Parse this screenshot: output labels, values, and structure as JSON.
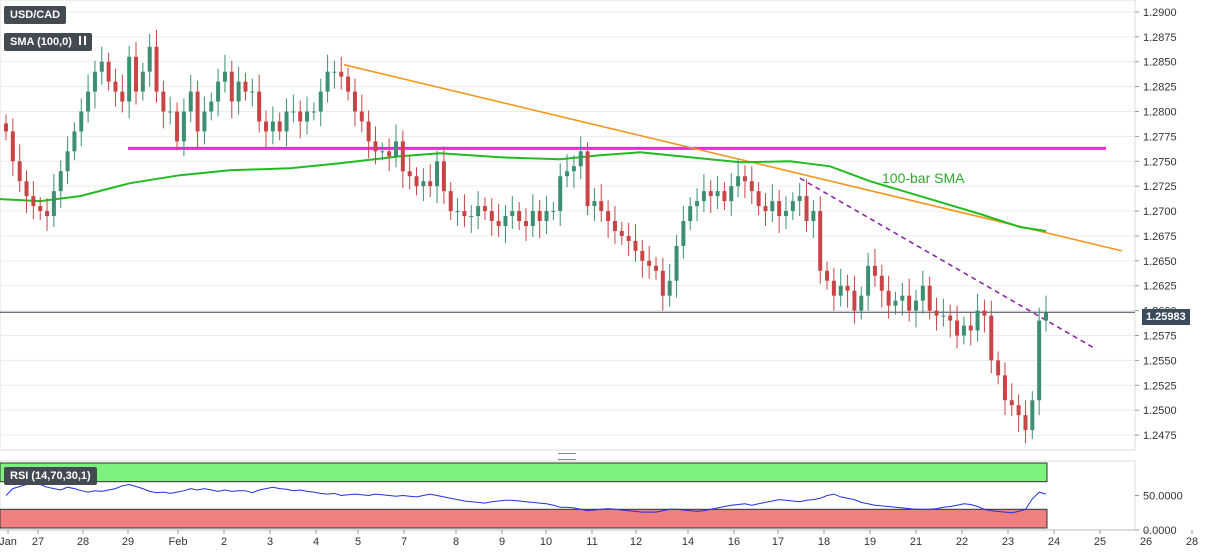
{
  "symbol": "USD/CAD",
  "indicator_label": "SMA (100,0)",
  "rsi_label": "RSI (14,70,30,1)",
  "annotation": "100-bar SMA",
  "current_price": "1.25983",
  "colors": {
    "up": "#3d8f72",
    "down": "#c94545",
    "sma": "#22bb22",
    "trend": "#f5961e",
    "support": "#ff22dd",
    "dashed": "#8a2aa3",
    "rsi_line": "#2233dd",
    "rsi_over": "#7cf27c",
    "rsi_under": "#f07f7f"
  },
  "chart_data": {
    "type": "candlestick",
    "y_ticks": [
      "1.2900",
      "1.2875",
      "1.2850",
      "1.2825",
      "1.2800",
      "1.2775",
      "1.2750",
      "1.2725",
      "1.2700",
      "1.2675",
      "1.2650",
      "1.2625",
      "1.2600",
      "1.2575",
      "1.2550",
      "1.2525",
      "1.2500",
      "1.2475"
    ],
    "x_ticks": [
      "Jan",
      "27",
      "28",
      "29",
      "Feb",
      "2",
      "3",
      "4",
      "5",
      "7",
      "8",
      "9",
      "10",
      "11",
      "12",
      "14",
      "16",
      "17",
      "18",
      "19",
      "21",
      "22",
      "23",
      "24",
      "25",
      "26",
      "28"
    ],
    "rsi_ticks": [
      "50.0000",
      "0.0000"
    ],
    "ylim": [
      1.246,
      1.2912
    ],
    "rsi_ylim": [
      0,
      100
    ],
    "closes": [
      1.278,
      1.275,
      1.273,
      1.2715,
      1.2705,
      1.27,
      1.2695,
      1.272,
      1.274,
      1.276,
      1.278,
      1.28,
      1.282,
      1.284,
      1.285,
      1.283,
      1.282,
      1.281,
      1.2855,
      1.282,
      1.284,
      1.2865,
      1.282,
      1.28,
      1.28,
      1.277,
      1.28,
      1.282,
      1.278,
      1.28,
      1.281,
      1.283,
      1.284,
      1.281,
      1.283,
      1.282,
      1.282,
      1.279,
      1.278,
      1.279,
      1.278,
      1.28,
      1.28,
      1.279,
      1.28,
      1.28,
      1.282,
      1.284,
      1.284,
      1.2835,
      1.282,
      1.28,
      1.279,
      1.277,
      1.276,
      1.276,
      1.2755,
      1.277,
      1.274,
      1.2735,
      1.2725,
      1.273,
      1.2725,
      1.275,
      1.272,
      1.27,
      1.27,
      1.2695,
      1.2695,
      1.2705,
      1.27,
      1.269,
      1.2685,
      1.2695,
      1.27,
      1.269,
      1.2685,
      1.27,
      1.269,
      1.27,
      1.27,
      1.2735,
      1.274,
      1.2745,
      1.276,
      1.2705,
      1.271,
      1.27,
      1.269,
      1.268,
      1.2675,
      1.267,
      1.266,
      1.265,
      1.2645,
      1.264,
      1.2615,
      1.263,
      1.2665,
      1.269,
      1.2705,
      1.271,
      1.272,
      1.2715,
      1.272,
      1.271,
      1.2725,
      1.2735,
      1.273,
      1.272,
      1.2705,
      1.27,
      1.271,
      1.2695,
      1.27,
      1.271,
      1.2715,
      1.269,
      1.27,
      1.264,
      1.263,
      1.2615,
      1.2625,
      1.262,
      1.26,
      1.2615,
      1.2645,
      1.2635,
      1.262,
      1.2605,
      1.261,
      1.2615,
      1.26,
      1.261,
      1.2625,
      1.26,
      1.2595,
      1.2595,
      1.259,
      1.2575,
      1.2585,
      1.258,
      1.26,
      1.2595,
      1.255,
      1.2535,
      1.251,
      1.2505,
      1.2495,
      1.248,
      1.251,
      1.259,
      1.2598
    ],
    "rsi_values": [
      50,
      60,
      63,
      66,
      68,
      66,
      62,
      60,
      58,
      62,
      60,
      57,
      55,
      57,
      56,
      58,
      60,
      64,
      66,
      63,
      60,
      56,
      54,
      55,
      53,
      55,
      57,
      60,
      58,
      60,
      58,
      56,
      58,
      56,
      57,
      57,
      54,
      58,
      60,
      62,
      60,
      59,
      57,
      58,
      56,
      55,
      53,
      52,
      53,
      50,
      51,
      52,
      51,
      50,
      52,
      51,
      50,
      49,
      50,
      49,
      48,
      50,
      52,
      50,
      48,
      46,
      44,
      42,
      41,
      40,
      39,
      41,
      42,
      43,
      43,
      42,
      41,
      40,
      39,
      38,
      36,
      33,
      33,
      32,
      30,
      28,
      29,
      30,
      31,
      30,
      29,
      28,
      27,
      26,
      26,
      26,
      28,
      30,
      30,
      29,
      28,
      27,
      28,
      30,
      32,
      34,
      36,
      37,
      38,
      36,
      38,
      40,
      42,
      44,
      43,
      42,
      41,
      43,
      44,
      46,
      50,
      52,
      48,
      46,
      44,
      40,
      38,
      36,
      35,
      34,
      33,
      32,
      31,
      30,
      30,
      30,
      31,
      33,
      34,
      36,
      38,
      37,
      34,
      30,
      28,
      27,
      26,
      25,
      27,
      30,
      45,
      55,
      52
    ]
  }
}
